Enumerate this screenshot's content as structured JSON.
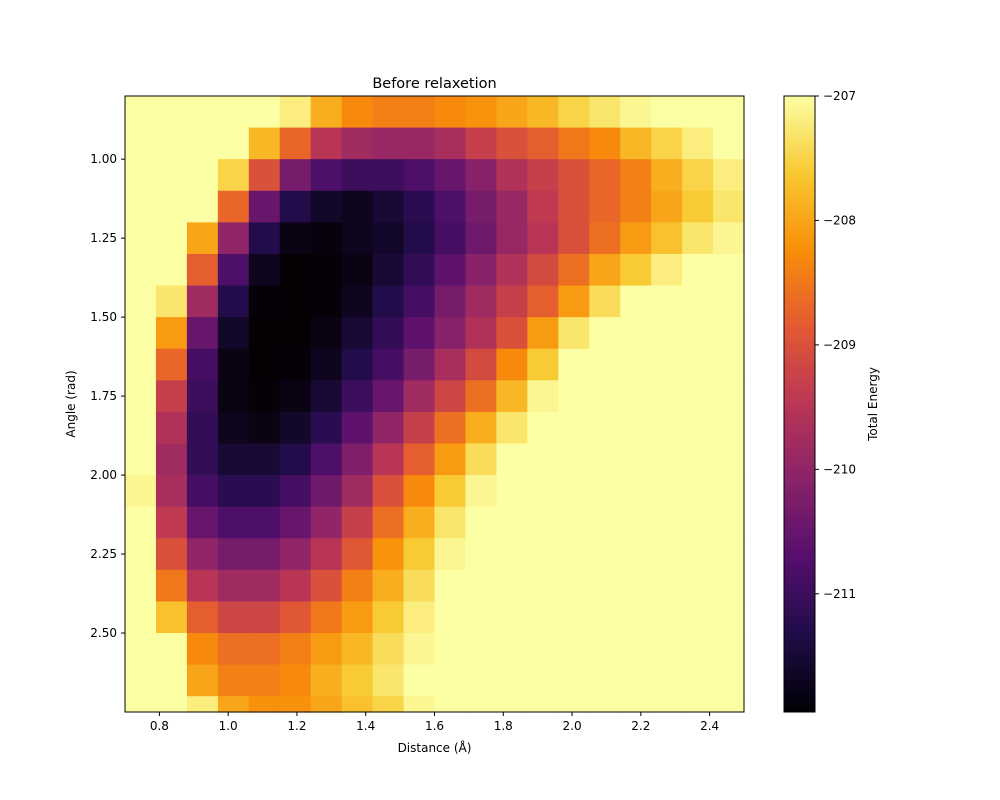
{
  "chart_data": {
    "type": "heatmap",
    "title": "Before relaxetion",
    "xlabel": "Distance (Å)",
    "ylabel": "Angle (rad)",
    "colorbar_label": "Total Energy",
    "colormap": "inferno",
    "x_range": [
      0.7,
      2.5
    ],
    "y_range": [
      0.8,
      2.75
    ],
    "y_inverted": true,
    "color_range": [
      -211.95,
      -207.0
    ],
    "x": [
      0.745,
      0.835,
      0.925,
      1.015,
      1.105,
      1.195,
      1.285,
      1.375,
      1.465,
      1.555,
      1.645,
      1.735,
      1.825,
      1.915,
      2.005,
      2.095,
      2.185,
      2.275,
      2.365,
      2.455
    ],
    "y": [
      0.85,
      0.95,
      1.05,
      1.15,
      1.25,
      1.35,
      1.45,
      1.55,
      1.65,
      1.75,
      1.85,
      1.95,
      2.05,
      2.15,
      2.25,
      2.35,
      2.45,
      2.55,
      2.65,
      2.75
    ],
    "z": [
      [
        -207.0,
        -207.0,
        -207.0,
        -207.0,
        -207.0,
        -207.2,
        -207.9,
        -208.3,
        -208.4,
        -208.4,
        -208.3,
        -208.2,
        -208.0,
        -207.8,
        -207.5,
        -207.3,
        -207.1,
        -207.0,
        -207.0,
        -207.0
      ],
      [
        -207.0,
        -207.0,
        -207.0,
        -207.0,
        -207.8,
        -208.7,
        -209.5,
        -209.8,
        -209.9,
        -209.9,
        -209.7,
        -209.3,
        -209.0,
        -208.8,
        -208.5,
        -208.3,
        -207.8,
        -207.5,
        -207.2,
        -207.0
      ],
      [
        -207.0,
        -207.0,
        -207.0,
        -207.5,
        -209.0,
        -210.3,
        -210.8,
        -211.0,
        -211.0,
        -210.8,
        -210.5,
        -210.1,
        -209.6,
        -209.3,
        -209.0,
        -208.7,
        -208.4,
        -207.9,
        -207.5,
        -207.2
      ],
      [
        -207.0,
        -207.0,
        -207.0,
        -208.7,
        -210.5,
        -211.3,
        -211.6,
        -211.7,
        -211.5,
        -211.2,
        -210.8,
        -210.3,
        -209.9,
        -209.4,
        -209.0,
        -208.7,
        -208.4,
        -208.0,
        -207.6,
        -207.3
      ],
      [
        -207.0,
        -207.0,
        -208.0,
        -210.0,
        -211.3,
        -211.8,
        -211.85,
        -211.7,
        -211.6,
        -211.3,
        -210.9,
        -210.4,
        -209.9,
        -209.5,
        -209.0,
        -208.6,
        -208.1,
        -207.7,
        -207.3,
        -207.1
      ],
      [
        -207.0,
        -207.0,
        -208.8,
        -210.8,
        -211.7,
        -211.95,
        -211.9,
        -211.8,
        -211.5,
        -211.1,
        -210.6,
        -210.1,
        -209.6,
        -209.1,
        -208.6,
        -208.0,
        -207.6,
        -207.2,
        -207.0,
        -207.0
      ],
      [
        -207.0,
        -207.3,
        -209.8,
        -211.3,
        -211.9,
        -211.95,
        -211.9,
        -211.7,
        -211.3,
        -210.9,
        -210.3,
        -209.8,
        -209.3,
        -208.8,
        -208.1,
        -207.4,
        -207.0,
        -207.0,
        -207.0,
        -207.0
      ],
      [
        -207.0,
        -208.1,
        -210.5,
        -211.6,
        -211.95,
        -211.95,
        -211.8,
        -211.5,
        -211.1,
        -210.6,
        -210.1,
        -209.6,
        -209.0,
        -208.1,
        -207.3,
        -207.0,
        -207.0,
        -207.0,
        -207.0,
        -207.0
      ],
      [
        -207.0,
        -208.7,
        -210.9,
        -211.8,
        -211.95,
        -211.9,
        -211.7,
        -211.3,
        -210.9,
        -210.3,
        -209.7,
        -209.1,
        -208.3,
        -207.6,
        -207.0,
        -207.0,
        -207.0,
        -207.0,
        -207.0,
        -207.0
      ],
      [
        -207.0,
        -209.3,
        -211.0,
        -211.8,
        -211.9,
        -211.8,
        -211.5,
        -211.0,
        -210.5,
        -209.8,
        -209.2,
        -208.6,
        -207.8,
        -207.1,
        -207.0,
        -207.0,
        -207.0,
        -207.0,
        -207.0,
        -207.0
      ],
      [
        -207.0,
        -209.6,
        -211.1,
        -211.7,
        -211.8,
        -211.6,
        -211.2,
        -210.6,
        -210.0,
        -209.3,
        -208.6,
        -207.9,
        -207.3,
        -207.0,
        -207.0,
        -207.0,
        -207.0,
        -207.0,
        -207.0,
        -207.0
      ],
      [
        -207.0,
        -209.8,
        -211.1,
        -211.5,
        -211.5,
        -211.3,
        -210.8,
        -210.2,
        -209.5,
        -208.8,
        -208.1,
        -207.4,
        -207.0,
        -207.0,
        -207.0,
        -207.0,
        -207.0,
        -207.0,
        -207.0,
        -207.0
      ],
      [
        -207.1,
        -209.7,
        -210.9,
        -211.2,
        -211.2,
        -210.9,
        -210.4,
        -209.8,
        -209.0,
        -208.3,
        -207.6,
        -207.1,
        -207.0,
        -207.0,
        -207.0,
        -207.0,
        -207.0,
        -207.0,
        -207.0,
        -207.0
      ],
      [
        -207.0,
        -209.4,
        -210.5,
        -210.8,
        -210.8,
        -210.5,
        -210.0,
        -209.3,
        -208.6,
        -207.9,
        -207.3,
        -207.0,
        -207.0,
        -207.0,
        -207.0,
        -207.0,
        -207.0,
        -207.0,
        -207.0,
        -207.0
      ],
      [
        -207.0,
        -209.0,
        -210.0,
        -210.3,
        -210.3,
        -210.0,
        -209.5,
        -208.9,
        -208.2,
        -207.6,
        -207.1,
        -207.0,
        -207.0,
        -207.0,
        -207.0,
        -207.0,
        -207.0,
        -207.0,
        -207.0,
        -207.0
      ],
      [
        -207.0,
        -208.5,
        -209.5,
        -209.8,
        -209.8,
        -209.5,
        -209.0,
        -208.4,
        -207.9,
        -207.4,
        -207.0,
        -207.0,
        -207.0,
        -207.0,
        -207.0,
        -207.0,
        -207.0,
        -207.0,
        -207.0,
        -207.0
      ],
      [
        -207.0,
        -207.7,
        -208.8,
        -209.2,
        -209.2,
        -208.9,
        -208.5,
        -208.1,
        -207.6,
        -207.2,
        -207.0,
        -207.0,
        -207.0,
        -207.0,
        -207.0,
        -207.0,
        -207.0,
        -207.0,
        -207.0,
        -207.0
      ],
      [
        -207.0,
        -207.0,
        -208.3,
        -208.6,
        -208.6,
        -208.4,
        -208.1,
        -207.8,
        -207.4,
        -207.1,
        -207.0,
        -207.0,
        -207.0,
        -207.0,
        -207.0,
        -207.0,
        -207.0,
        -207.0,
        -207.0,
        -207.0
      ],
      [
        -207.0,
        -207.0,
        -208.0,
        -208.4,
        -208.4,
        -208.3,
        -207.9,
        -207.6,
        -207.3,
        -207.0,
        -207.0,
        -207.0,
        -207.0,
        -207.0,
        -207.0,
        -207.0,
        -207.0,
        -207.0,
        -207.0,
        -207.0
      ],
      [
        -207.0,
        -207.0,
        -207.2,
        -208.0,
        -208.2,
        -208.2,
        -208.0,
        -207.7,
        -207.5,
        -207.1,
        -207.0,
        -207.0,
        -207.0,
        -207.0,
        -207.0,
        -207.0,
        -207.0,
        -207.0,
        -207.0,
        -207.0
      ]
    ],
    "x_ticks": [
      "0.8",
      "1.0",
      "1.2",
      "1.4",
      "1.6",
      "1.8",
      "2.0",
      "2.2",
      "2.4"
    ],
    "y_ticks": [
      "1.00",
      "1.25",
      "1.50",
      "1.75",
      "2.00",
      "2.25",
      "2.50"
    ],
    "colorbar_ticks": [
      "−207",
      "−208",
      "−209",
      "−210",
      "−211"
    ],
    "grid": false,
    "legend": "none"
  }
}
